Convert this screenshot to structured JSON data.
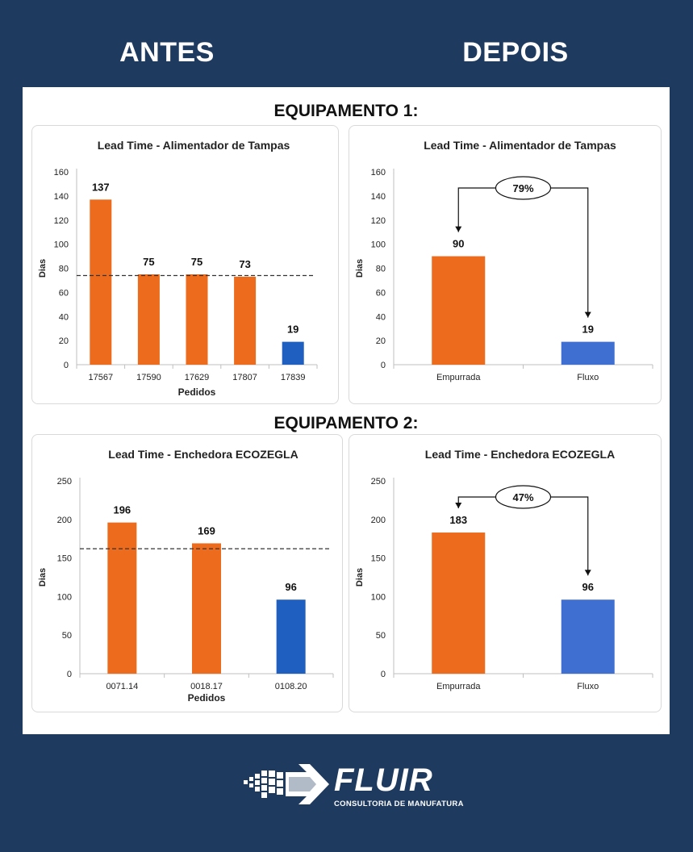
{
  "header": {
    "left": "ANTES",
    "right": "DEPOIS"
  },
  "sections": [
    {
      "title": "EQUIPAMENTO 1:"
    },
    {
      "title": "EQUIPAMENTO 2:"
    }
  ],
  "logo": {
    "word": "FLUIR",
    "tagline": "CONSULTORIA DE MANUFATURA",
    "icon": "arrow-pixels-icon"
  },
  "colors": {
    "background": "#1f3a5f",
    "orange": "#ec6b1c",
    "blue": "#1f5fc0",
    "blue_light": "#3f6fd0"
  },
  "chart_data": [
    {
      "type": "bar",
      "title": "Lead Time - Alimentador de Tampas",
      "xlabel": "Pedidos",
      "ylabel": "Dias",
      "categories": [
        "17567",
        "17590",
        "17629",
        "17807",
        "17839"
      ],
      "values": [
        137,
        75,
        75,
        73,
        19
      ],
      "bar_colors": [
        "orange",
        "orange",
        "orange",
        "orange",
        "blue"
      ],
      "ylim": [
        0,
        160
      ],
      "yticks": [
        0,
        20,
        40,
        60,
        80,
        100,
        120,
        140,
        160
      ],
      "reference_line": 74
    },
    {
      "type": "bar",
      "title": "Lead Time - Alimentador de Tampas",
      "xlabel": "",
      "ylabel": "Dias",
      "categories": [
        "Empurrada",
        "Fluxo"
      ],
      "values": [
        90,
        19
      ],
      "bar_colors": [
        "orange",
        "blue_light"
      ],
      "ylim": [
        0,
        160
      ],
      "yticks": [
        0,
        20,
        40,
        60,
        80,
        100,
        120,
        140,
        160
      ],
      "annotation": "79%"
    },
    {
      "type": "bar",
      "title": "Lead Time - Enchedora ECOZEGLA",
      "xlabel": "Pedidos",
      "ylabel": "Dias",
      "categories": [
        "0071.14",
        "0018.17",
        "0108.20"
      ],
      "values": [
        196,
        169,
        96
      ],
      "bar_colors": [
        "orange",
        "orange",
        "blue"
      ],
      "ylim": [
        0,
        250
      ],
      "yticks": [
        0,
        50,
        100,
        150,
        200,
        250
      ],
      "reference_line": 162
    },
    {
      "type": "bar",
      "title": "Lead Time - Enchedora ECOZEGLA",
      "xlabel": "",
      "ylabel": "Dias",
      "categories": [
        "Empurrada",
        "Fluxo"
      ],
      "values": [
        183,
        96
      ],
      "bar_colors": [
        "orange",
        "blue_light"
      ],
      "ylim": [
        0,
        250
      ],
      "yticks": [
        0,
        50,
        100,
        150,
        200,
        250
      ],
      "annotation": "47%"
    }
  ]
}
